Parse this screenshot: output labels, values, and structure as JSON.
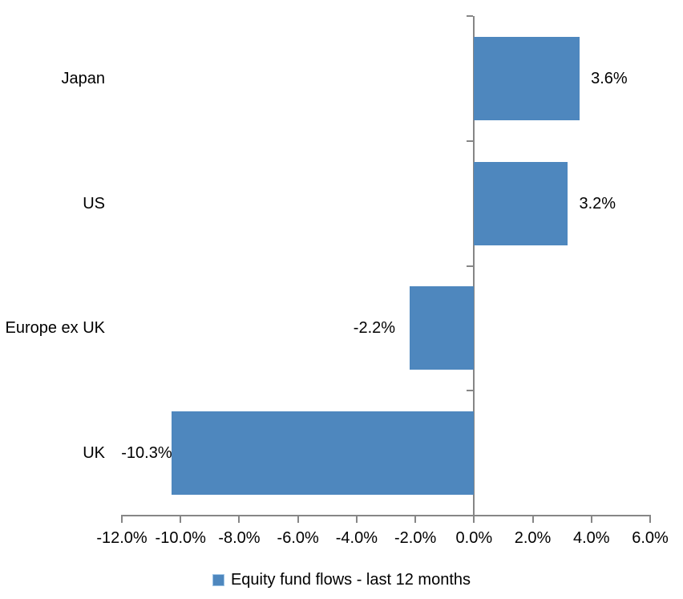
{
  "chart_data": {
    "type": "bar",
    "orientation": "horizontal",
    "title": "",
    "categories": [
      "Japan",
      "US",
      "Europe ex UK",
      "UK"
    ],
    "series": [
      {
        "name": "Equity fund flows - last 12 months",
        "values": [
          3.6,
          3.2,
          -2.2,
          -10.3
        ],
        "data_labels": [
          "3.6%",
          "3.2%",
          "-2.2%",
          "-10.3%"
        ]
      }
    ],
    "xlim": [
      -12,
      6
    ],
    "x_tick_values": [
      -12,
      -10,
      -8,
      -6,
      -4,
      -2,
      0,
      2,
      4,
      6
    ],
    "x_tick_labels": [
      "-12.0%",
      "-10.0%",
      "-8.0%",
      "-6.0%",
      "-4.0%",
      "-2.0%",
      "0.0%",
      "2.0%",
      "4.0%",
      "6.0%"
    ],
    "grid": false,
    "legend": "Equity fund flows - last 12 months",
    "legend_position": "bottom",
    "colors": {
      "bar_fill": "#4E87BE",
      "legend_marker_edge": "#9CC3E5",
      "axis_line": "#868686",
      "text": "#000000"
    }
  }
}
